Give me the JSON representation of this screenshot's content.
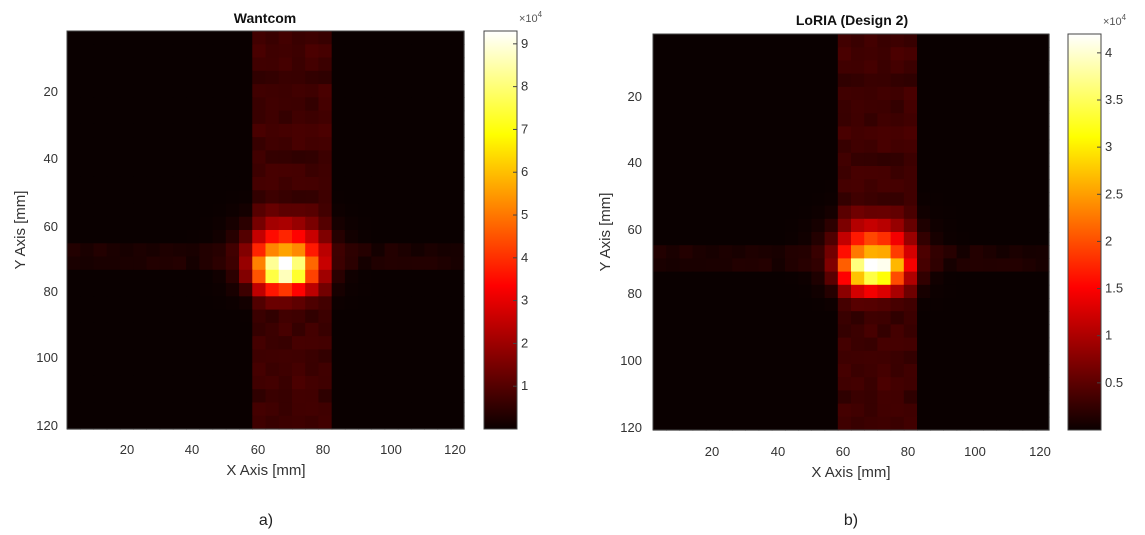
{
  "chart_data": [
    {
      "type": "heatmap",
      "title": "Wantcom",
      "xlabel": "X Axis [mm]",
      "ylabel": "Y Axis [mm]",
      "caption": "a)",
      "xlim": [
        0,
        122
      ],
      "ylim": [
        0,
        122
      ],
      "y_reversed": true,
      "x_ticks": [
        "20",
        "40",
        "60",
        "80",
        "100",
        "120"
      ],
      "y_ticks": [
        "20",
        "40",
        "60",
        "80",
        "100",
        "120"
      ],
      "colorbar": {
        "colormap": "hot",
        "range": [
          0,
          93000
        ],
        "multiplier": "×10",
        "multiplier_exp": "4",
        "ticks": [
          "1",
          "2",
          "3",
          "4",
          "5",
          "6",
          "7",
          "8",
          "9"
        ],
        "tick_values": [
          10000,
          20000,
          30000,
          40000,
          50000,
          60000,
          70000,
          80000,
          90000
        ]
      },
      "field": {
        "peak_center_mm": [
          67,
          73
        ],
        "peak_value": 93000,
        "column_band_mm": [
          55,
          81
        ],
        "side_band_y_mm": 70
      }
    },
    {
      "type": "heatmap",
      "title": "LoRIA (Design 2)",
      "xlabel": "X Axis [mm]",
      "ylabel": "Y Axis [mm]",
      "caption": "b)",
      "xlim": [
        0,
        122
      ],
      "ylim": [
        0,
        122
      ],
      "y_reversed": true,
      "x_ticks": [
        "20",
        "40",
        "60",
        "80",
        "100",
        "120"
      ],
      "y_ticks": [
        "20",
        "40",
        "60",
        "80",
        "100",
        "120"
      ],
      "colorbar": {
        "colormap": "hot",
        "range": [
          0,
          42000
        ],
        "multiplier": "×10",
        "multiplier_exp": "4",
        "ticks": [
          "0.5",
          "1",
          "1.5",
          "2",
          "2.5",
          "3",
          "3.5",
          "4"
        ],
        "tick_values": [
          5000,
          10000,
          15000,
          20000,
          25000,
          30000,
          35000,
          40000
        ]
      },
      "field": {
        "peak_center_mm": [
          68,
          72
        ],
        "peak_value": 42000,
        "column_band_mm": [
          55,
          81
        ],
        "side_band_y_mm": 70
      }
    }
  ]
}
